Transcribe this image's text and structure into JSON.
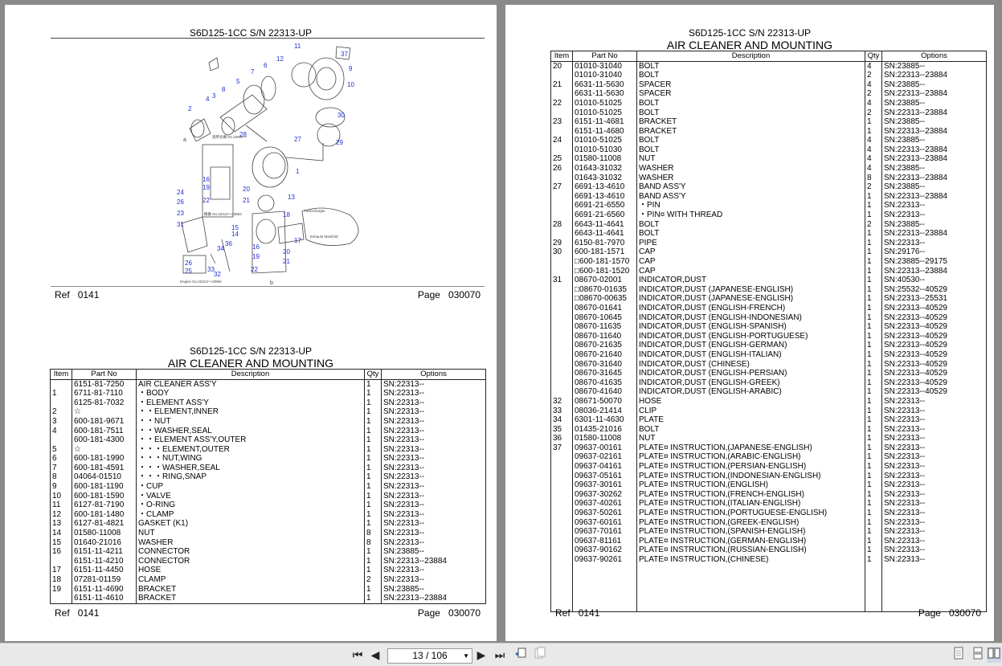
{
  "left_page": {
    "figure": {
      "title": "S6D125-1CC S/N 22313-UP",
      "callouts": [
        "1",
        "2",
        "3",
        "4",
        "5",
        "6",
        "7",
        "8",
        "9",
        "10",
        "11",
        "12",
        "13",
        "14",
        "15",
        "16",
        "17",
        "18",
        "19",
        "20",
        "21",
        "22",
        "23",
        "24",
        "25",
        "26",
        "27",
        "28",
        "29",
        "30",
        "31",
        "32",
        "33",
        "34",
        "36",
        "37"
      ],
      "notes": [
        "適用号機 No.23885～",
        "機番 No.22313～23884",
        "Engine No.22313～23884",
        "ターボチャージャー",
        "Turbocharger",
        "エキゾーストマニホールド",
        "Exhaust Manifold",
        "a",
        "b"
      ],
      "ref_label": "Ref",
      "ref_value": "0141",
      "page_label": "Page",
      "page_value": "030070"
    },
    "table": {
      "title": "S6D125-1CC S/N 22313-UP",
      "heading": "AIR CLEANER AND MOUNTING",
      "columns": [
        "Item",
        "Part No",
        "Description",
        "Qty",
        "Options"
      ],
      "rows": [
        [
          "",
          "6151-81-7250",
          "AIR CLEANER ASS'Y",
          "1",
          "SN:22313--"
        ],
        [
          "1",
          "6711-81-7110",
          "・BODY",
          "1",
          "SN:22313--"
        ],
        [
          "",
          "6125-81-7032",
          "・ELEMENT ASS'Y",
          "1",
          "SN:22313--"
        ],
        [
          "2",
          "☆",
          "・・ELEMENT,INNER",
          "1",
          "SN:22313--"
        ],
        [
          "3",
          "600-181-9671",
          "・・NUT",
          "1",
          "SN:22313--"
        ],
        [
          "4",
          "600-181-7511",
          "・・WASHER,SEAL",
          "1",
          "SN:22313--"
        ],
        [
          "",
          "600-181-4300",
          "・・ELEMENT ASS'Y,OUTER",
          "1",
          "SN:22313--"
        ],
        [
          "5",
          "☆",
          "・・・ELEMENT,OUTER",
          "1",
          "SN:22313--"
        ],
        [
          "6",
          "600-181-1990",
          "・・・NUT,WING",
          "1",
          "SN:22313--"
        ],
        [
          "7",
          "600-181-4591",
          "・・・WASHER,SEAL",
          "1",
          "SN:22313--"
        ],
        [
          "8",
          "04064-01510",
          "・・・RING,SNAP",
          "1",
          "SN:22313--"
        ],
        [
          "9",
          "600-181-1190",
          "・CUP",
          "1",
          "SN:22313--"
        ],
        [
          "10",
          "600-181-1590",
          "・VALVE",
          "1",
          "SN:22313--"
        ],
        [
          "11",
          "6127-81-7190",
          "・O-RING",
          "1",
          "SN:22313--"
        ],
        [
          "12",
          "600-181-1480",
          "・CLAMP",
          "1",
          "SN:22313--"
        ],
        [
          "13",
          "6127-81-4821",
          "GASKET (K1)",
          "1",
          "SN:22313--"
        ],
        [
          "14",
          "01580-11008",
          "NUT",
          "8",
          "SN:22313--"
        ],
        [
          "15",
          "01640-21016",
          "WASHER",
          "8",
          "SN:22313--"
        ],
        [
          "16",
          "6151-11-4211",
          "CONNECTOR",
          "1",
          "SN:23885--"
        ],
        [
          "",
          "6151-11-4210",
          "CONNECTOR",
          "1",
          "SN:22313--23884"
        ],
        [
          "17",
          "6151-11-4450",
          "HOSE",
          "1",
          "SN:22313--"
        ],
        [
          "18",
          "07281-01159",
          "CLAMP",
          "2",
          "SN:22313--"
        ],
        [
          "19",
          "6151-11-4690",
          "BRACKET",
          "1",
          "SN:23885--"
        ],
        [
          "",
          "6151-11-4610",
          "BRACKET",
          "1",
          "SN:22313--23884"
        ]
      ],
      "ref_label": "Ref",
      "ref_value": "0141",
      "page_label": "Page",
      "page_value": "030070"
    }
  },
  "right_page": {
    "title": "S6D125-1CC S/N 22313-UP",
    "heading": "AIR CLEANER AND MOUNTING",
    "columns": [
      "Item",
      "Part No",
      "Description",
      "Qty",
      "Options"
    ],
    "rows": [
      [
        "20",
        "01010-31040",
        "BOLT",
        "4",
        "SN:23885--"
      ],
      [
        "",
        "01010-31040",
        "BOLT",
        "2",
        "SN:22313--23884"
      ],
      [
        "21",
        "6631-11-5630",
        "SPACER",
        "4",
        "SN:23885--"
      ],
      [
        "",
        "6631-11-5630",
        "SPACER",
        "2",
        "SN:22313--23884"
      ],
      [
        "22",
        "01010-51025",
        "BOLT",
        "4",
        "SN:23885--"
      ],
      [
        "",
        "01010-51025",
        "BOLT",
        "2",
        "SN:22313--23884"
      ],
      [
        "23",
        "6151-11-4681",
        "BRACKET",
        "1",
        "SN:23885--"
      ],
      [
        "",
        "6151-11-4680",
        "BRACKET",
        "1",
        "SN:22313--23884"
      ],
      [
        "24",
        "01010-51025",
        "BOLT",
        "4",
        "SN:23885--"
      ],
      [
        "",
        "01010-51030",
        "BOLT",
        "4",
        "SN:22313--23884"
      ],
      [
        "25",
        "01580-11008",
        "NUT",
        "4",
        "SN:22313--23884"
      ],
      [
        "26",
        "01643-31032",
        "WASHER",
        "4",
        "SN:23885--"
      ],
      [
        "",
        "01643-31032",
        "WASHER",
        "8",
        "SN:22313--23884"
      ],
      [
        "27",
        "6691-13-4610",
        "BAND ASS'Y",
        "2",
        "SN:23885--"
      ],
      [
        "",
        "6691-13-4610",
        "BAND ASS'Y",
        "1",
        "SN:22313--23884"
      ],
      [
        "",
        "6691-21-6550",
        "・PIN",
        "1",
        "SN:22313--"
      ],
      [
        "",
        "6691-21-6560",
        "・PIN¤ WITH THREAD",
        "1",
        "SN:22313--"
      ],
      [
        "28",
        "6643-11-4641",
        "BOLT",
        "2",
        "SN:23885--"
      ],
      [
        "",
        "6643-11-4641",
        "BOLT",
        "1",
        "SN:22313--23884"
      ],
      [
        "29",
        "6150-81-7970",
        "PIPE",
        "1",
        "SN:22313--"
      ],
      [
        "30",
        "600-181-1571",
        "CAP",
        "1",
        "SN:29176--"
      ],
      [
        "",
        "□600-181-1570",
        "CAP",
        "1",
        "SN:23885--29175"
      ],
      [
        "",
        "□600-181-1520",
        "CAP",
        "1",
        "SN:22313--23884"
      ],
      [
        "31",
        "08670-02001",
        "INDICATOR,DUST",
        "1",
        "SN:40530--"
      ],
      [
        "",
        "□08670-01635",
        "INDICATOR,DUST (JAPANESE-ENGLISH)",
        "1",
        "SN:25532--40529"
      ],
      [
        "",
        "□08670-00635",
        "INDICATOR,DUST (JAPANESE-ENGLISH)",
        "1",
        "SN:22313--25531"
      ],
      [
        "",
        "08670-01641",
        "INDICATOR,DUST (ENGLISH-FRENCH)",
        "1",
        "SN:22313--40529"
      ],
      [
        "",
        "08670-10645",
        "INDICATOR,DUST (ENGLISH-INDONESIAN)",
        "1",
        "SN:22313--40529"
      ],
      [
        "",
        "08670-11635",
        "INDICATOR,DUST (ENGLISH-SPANISH)",
        "1",
        "SN:22313--40529"
      ],
      [
        "",
        "08670-11640",
        "INDICATOR,DUST (ENGLISH-PORTUGUESE)",
        "1",
        "SN:22313--40529"
      ],
      [
        "",
        "08670-21635",
        "INDICATOR,DUST (ENGLISH-GERMAN)",
        "1",
        "SN:22313--40529"
      ],
      [
        "",
        "08670-21640",
        "INDICATOR,DUST (ENGLISH-ITALIAN)",
        "1",
        "SN:22313--40529"
      ],
      [
        "",
        "08670-31640",
        "INDICATOR,DUST (CHINESE)",
        "1",
        "SN:22313--40529"
      ],
      [
        "",
        "08670-31645",
        "INDICATOR,DUST (ENGLISH-PERSIAN)",
        "1",
        "SN:22313--40529"
      ],
      [
        "",
        "08670-41635",
        "INDICATOR,DUST (ENGLISH-GREEK)",
        "1",
        "SN:22313--40529"
      ],
      [
        "",
        "08670-41640",
        "INDICATOR,DUST (ENGLISH-ARABIC)",
        "1",
        "SN:22313--40529"
      ],
      [
        "32",
        "08671-50070",
        "HOSE",
        "1",
        "SN:22313--"
      ],
      [
        "33",
        "08036-21414",
        "CLIP",
        "1",
        "SN:22313--"
      ],
      [
        "34",
        "6301-11-4630",
        "PLATE",
        "1",
        "SN:22313--"
      ],
      [
        "35",
        "01435-21016",
        "BOLT",
        "1",
        "SN:22313--"
      ],
      [
        "36",
        "01580-11008",
        "NUT",
        "1",
        "SN:22313--"
      ],
      [
        "37",
        "09637-00161",
        "PLATE¤ INSTRUCTION,(JAPANESE-ENGLISH)",
        "1",
        "SN:22313--"
      ],
      [
        "",
        "09637-02161",
        "PLATE¤ INSTRUCTION,(ARABIC-ENGLISH)",
        "1",
        "SN:22313--"
      ],
      [
        "",
        "09637-04161",
        "PLATE¤ INSTRUCTION,(PERSIAN-ENGLISH)",
        "1",
        "SN:22313--"
      ],
      [
        "",
        "09637-05161",
        "PLATE¤ INSTRUCTION,(INDONESIAN-ENGLISH)",
        "1",
        "SN:22313--"
      ],
      [
        "",
        "09637-30161",
        "PLATE¤ INSTRUCTION,(ENGLISH)",
        "1",
        "SN:22313--"
      ],
      [
        "",
        "09637-30262",
        "PLATE¤ INSTRUCTION,(FRENCH-ENGLISH)",
        "1",
        "SN:22313--"
      ],
      [
        "",
        "09637-40261",
        "PLATE¤ INSTRUCTION,(ITALIAN-ENGLISH)",
        "1",
        "SN:22313--"
      ],
      [
        "",
        "09637-50261",
        "PLATE¤ INSTRUCTION,(PORTUGUESE-ENGLISH)",
        "1",
        "SN:22313--"
      ],
      [
        "",
        "09637-60161",
        "PLATE¤ INSTRUCTION,(GREEK-ENGLISH)",
        "1",
        "SN:22313--"
      ],
      [
        "",
        "09637-70161",
        "PLATE¤ INSTRUCTION,(SPANISH-ENGLISH)",
        "1",
        "SN:22313--"
      ],
      [
        "",
        "09637-81161",
        "PLATE¤ INSTRUCTION,(GERMAN-ENGLISH)",
        "1",
        "SN:22313--"
      ],
      [
        "",
        "09637-90162",
        "PLATE¤ INSTRUCTION,(RUSSIAN-ENGLISH)",
        "1",
        "SN:22313--"
      ],
      [
        "",
        "09637-90261",
        "PLATE¤ INSTRUCTION,(CHINESE)",
        "1",
        "SN:22313--"
      ]
    ],
    "ref_label": "Ref",
    "ref_value": "0141",
    "page_label": "Page",
    "page_value": "030070"
  },
  "toolbar": {
    "page_indicator": "13 / 106",
    "icons": [
      "first-page-icon",
      "prev-page-icon",
      "next-page-icon",
      "last-page-icon",
      "go-back-icon",
      "go-forward-icon",
      "single-page-view-icon",
      "continuous-view-icon",
      "facing-pages-view-icon"
    ]
  },
  "colors": {
    "viewer_background": "#8a8a8a",
    "toolbar_background": "#e9e9e9",
    "callout_blue": "#1f2fd0"
  }
}
